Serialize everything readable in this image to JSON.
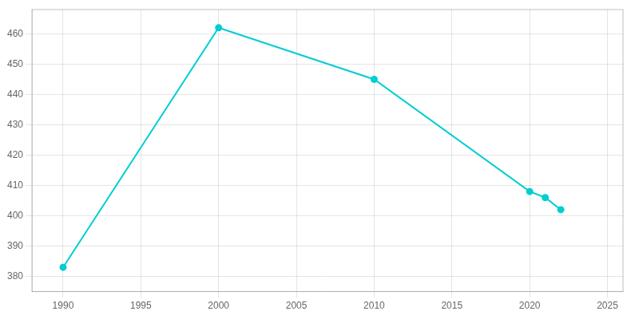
{
  "chart_data": {
    "type": "line",
    "x": [
      1990,
      2000,
      2010,
      2020,
      2021,
      2022
    ],
    "values": [
      383,
      462,
      445,
      408,
      406,
      402
    ],
    "color": "#00CED1",
    "marker": "circle",
    "xlim": [
      1988,
      2026
    ],
    "ylim": [
      375,
      468
    ],
    "xticks": [
      1990,
      1995,
      2000,
      2005,
      2010,
      2015,
      2020,
      2025
    ],
    "yticks": [
      380,
      390,
      400,
      410,
      420,
      430,
      440,
      450,
      460
    ],
    "grid": true
  }
}
